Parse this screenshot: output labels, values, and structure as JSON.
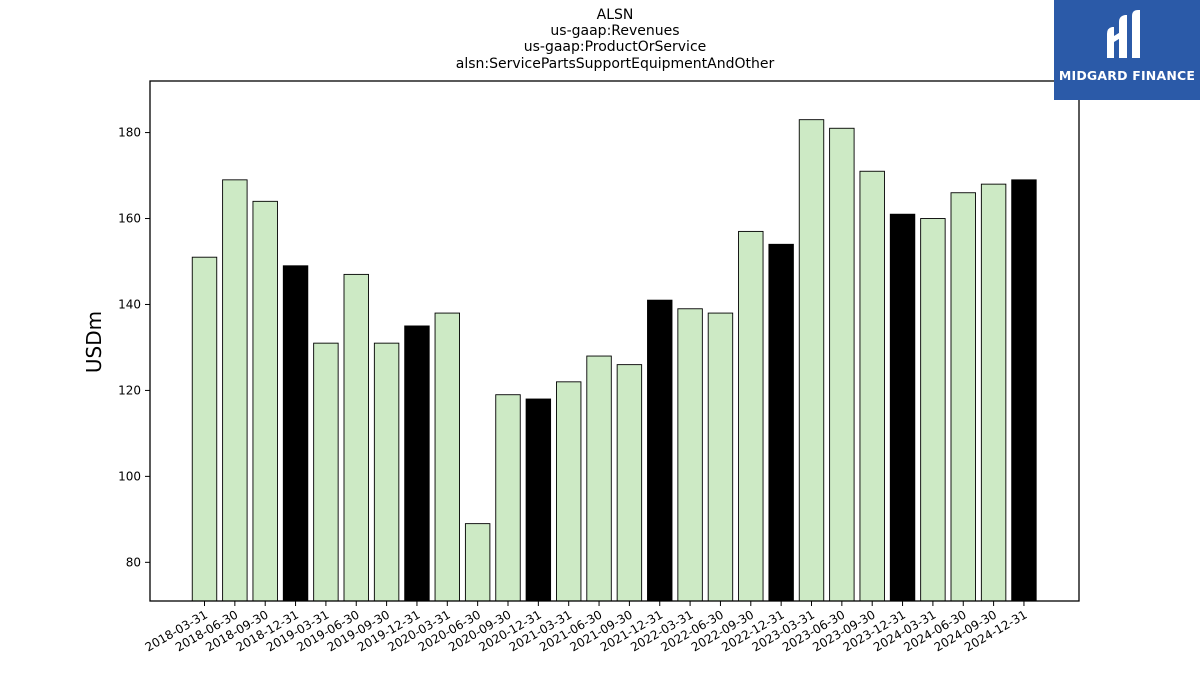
{
  "logo": {
    "text": "MIDGARD FINANCE",
    "icon": "midgard-m-logo-icon",
    "background": "#2b5aa8"
  },
  "chart_data": {
    "type": "bar",
    "title_lines": [
      "ALSN",
      "us-gaap:Revenues",
      "us-gaap:ProductOrService",
      "alsn:ServicePartsSupportEquipmentAndOther"
    ],
    "xlabel": "",
    "ylabel": "USDm",
    "ylim": [
      71,
      192
    ],
    "yticks": [
      80,
      100,
      120,
      140,
      160,
      180
    ],
    "grid": false,
    "legend": "none",
    "colors": {
      "quarter": "#cdeac5",
      "year_end": "#000000",
      "edge": "#000000"
    },
    "categories": [
      "2018-03-31",
      "2018-06-30",
      "2018-09-30",
      "2018-12-31",
      "2019-03-31",
      "2019-06-30",
      "2019-09-30",
      "2019-12-31",
      "2020-03-31",
      "2020-06-30",
      "2020-09-30",
      "2020-12-31",
      "2021-03-31",
      "2021-06-30",
      "2021-09-30",
      "2021-12-31",
      "2022-03-31",
      "2022-06-30",
      "2022-09-30",
      "2022-12-31",
      "2023-03-31",
      "2023-06-30",
      "2023-09-30",
      "2023-12-31",
      "2024-03-31",
      "2024-06-30",
      "2024-09-30",
      "2024-12-31"
    ],
    "values": [
      151,
      169,
      164,
      149,
      131,
      147,
      131,
      135,
      138,
      89,
      119,
      118,
      122,
      128,
      126,
      141,
      139,
      138,
      157,
      154,
      183,
      181,
      171,
      161,
      160,
      166,
      168,
      169
    ]
  }
}
